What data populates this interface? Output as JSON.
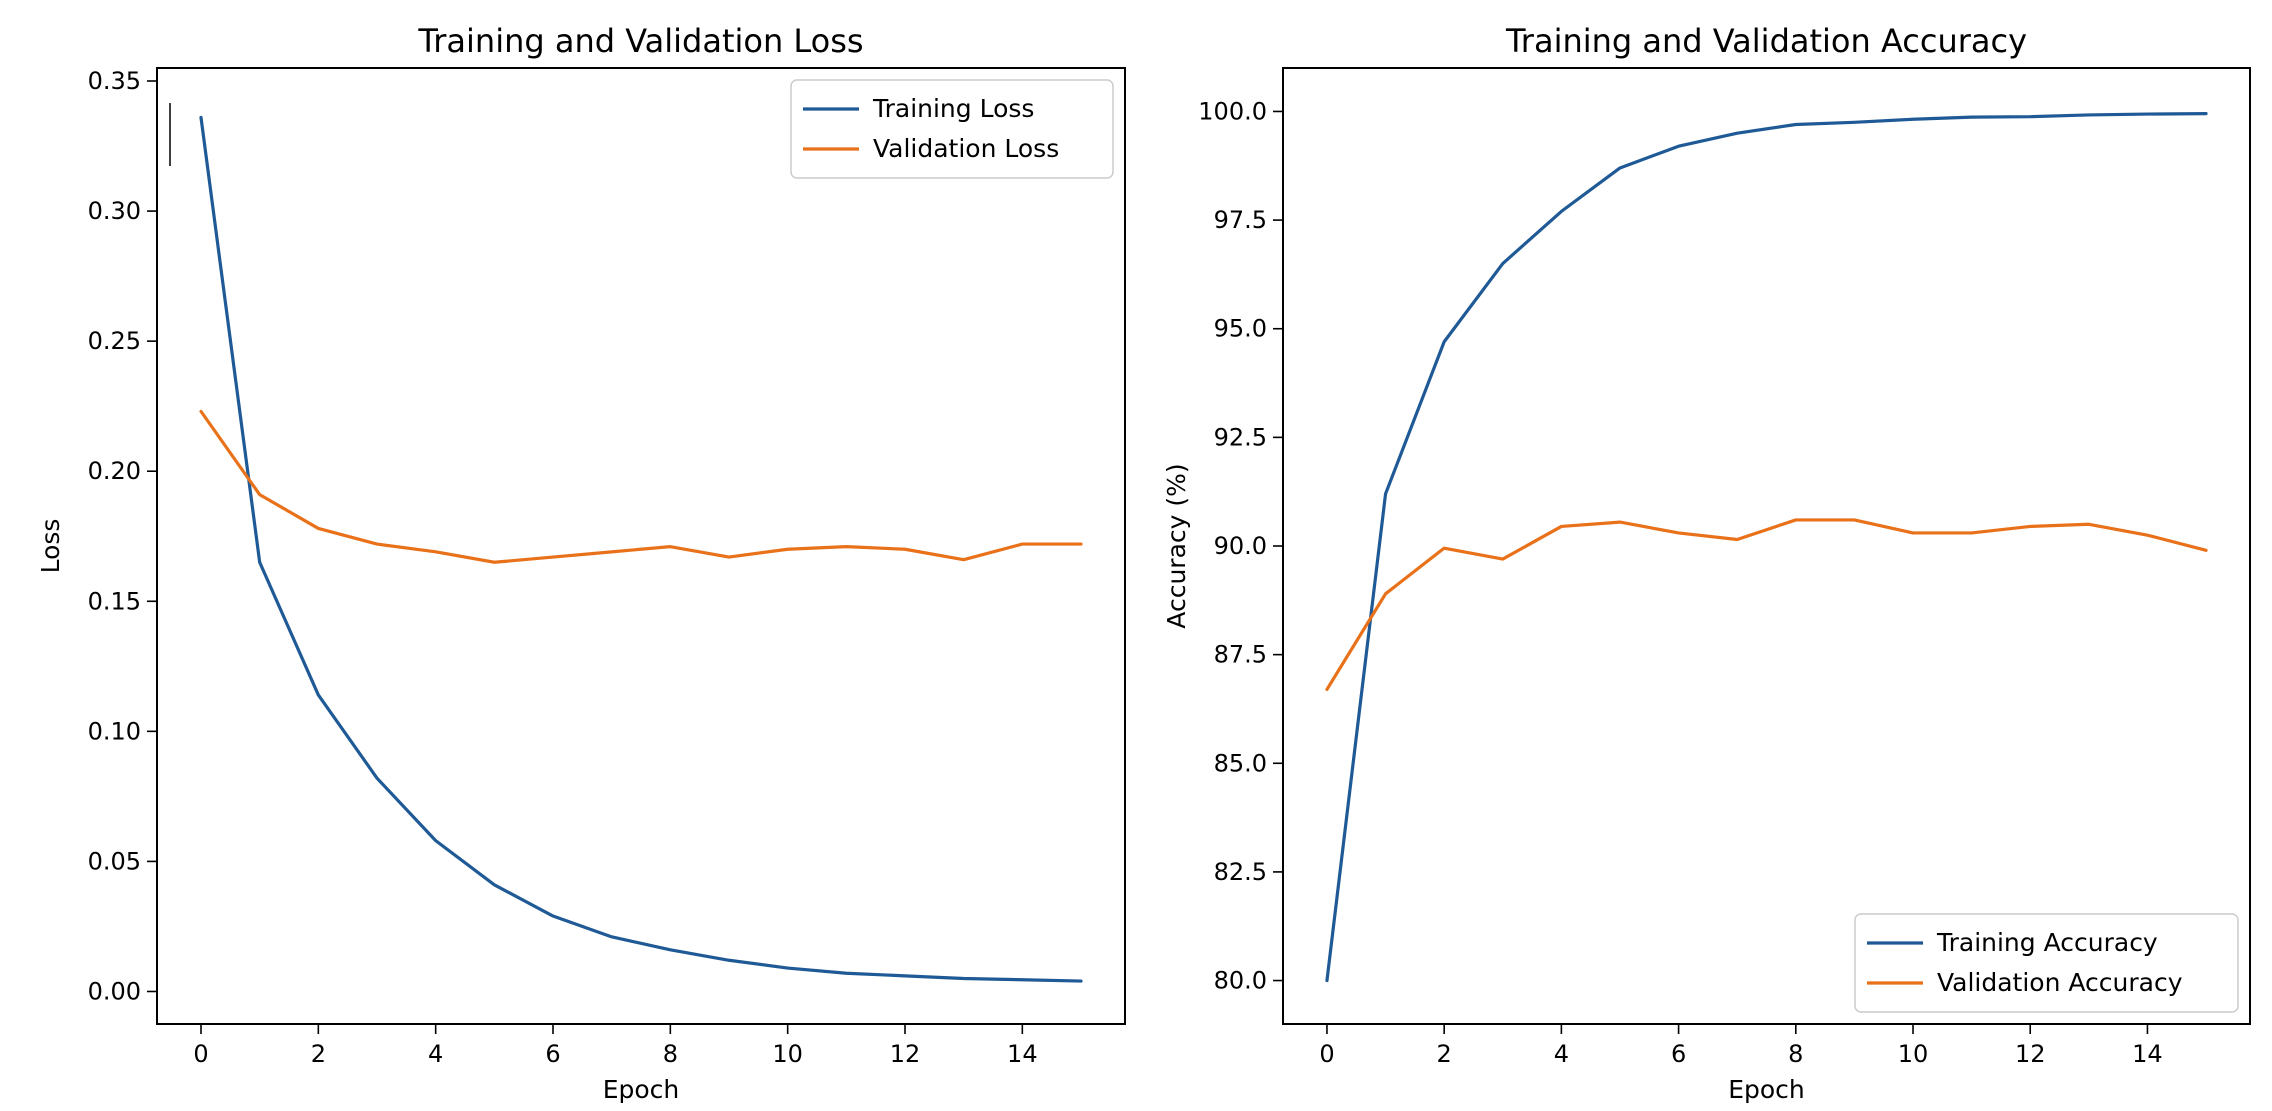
{
  "chart_data": [
    {
      "type": "line",
      "title": "Training and Validation Loss",
      "xlabel": "Epoch",
      "ylabel": "Loss",
      "xlim": [
        -0.75,
        15.75
      ],
      "ylim": [
        -0.0125,
        0.355
      ],
      "xticks": [
        0,
        2,
        4,
        6,
        8,
        10,
        12,
        14
      ],
      "xtick_labels": [
        "0",
        "2",
        "4",
        "6",
        "8",
        "10",
        "12",
        "14"
      ],
      "yticks": [
        0.0,
        0.05,
        0.1,
        0.15,
        0.2,
        0.25,
        0.3,
        0.35
      ],
      "ytick_labels": [
        "0.00",
        "0.05",
        "0.10",
        "0.15",
        "0.20",
        "0.25",
        "0.30",
        "0.35"
      ],
      "legend_position": "top-right",
      "x": [
        0,
        1,
        2,
        3,
        4,
        5,
        6,
        7,
        8,
        9,
        10,
        11,
        12,
        13,
        14,
        15
      ],
      "series": [
        {
          "name": "Training Loss",
          "color": "#1f5a96",
          "values": [
            0.336,
            0.165,
            0.114,
            0.082,
            0.058,
            0.041,
            0.029,
            0.021,
            0.016,
            0.012,
            0.009,
            0.007,
            0.006,
            0.005,
            0.0045,
            0.004
          ]
        },
        {
          "name": "Validation Loss",
          "color": "#e8711a",
          "values": [
            0.223,
            0.191,
            0.178,
            0.172,
            0.169,
            0.165,
            0.167,
            0.169,
            0.171,
            0.167,
            0.17,
            0.171,
            0.17,
            0.166,
            0.172,
            0.172
          ]
        }
      ]
    },
    {
      "type": "line",
      "title": "Training and Validation Accuracy",
      "xlabel": "Epoch",
      "ylabel": "Accuracy (%)",
      "xlim": [
        -0.75,
        15.75
      ],
      "ylim": [
        79.0,
        101.0
      ],
      "xticks": [
        0,
        2,
        4,
        6,
        8,
        10,
        12,
        14
      ],
      "xtick_labels": [
        "0",
        "2",
        "4",
        "6",
        "8",
        "10",
        "12",
        "14"
      ],
      "yticks": [
        80.0,
        82.5,
        85.0,
        87.5,
        90.0,
        92.5,
        95.0,
        97.5,
        100.0
      ],
      "ytick_labels": [
        "80.0",
        "82.5",
        "85.0",
        "87.5",
        "90.0",
        "92.5",
        "95.0",
        "97.5",
        "100.0"
      ],
      "legend_position": "bottom-right",
      "x": [
        0,
        1,
        2,
        3,
        4,
        5,
        6,
        7,
        8,
        9,
        10,
        11,
        12,
        13,
        14,
        15
      ],
      "series": [
        {
          "name": "Training Accuracy",
          "color": "#1f5a96",
          "values": [
            80.0,
            91.2,
            94.7,
            96.5,
            97.7,
            98.7,
            99.2,
            99.5,
            99.7,
            99.75,
            99.82,
            99.87,
            99.88,
            99.92,
            99.94,
            99.95
          ]
        },
        {
          "name": "Validation Accuracy",
          "color": "#e8711a",
          "values": [
            86.7,
            88.9,
            89.95,
            89.7,
            90.45,
            90.55,
            90.3,
            90.15,
            90.6,
            90.6,
            90.3,
            90.3,
            90.45,
            90.5,
            90.25,
            89.9
          ]
        }
      ]
    }
  ]
}
